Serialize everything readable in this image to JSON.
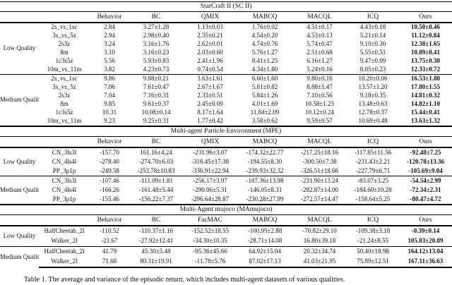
{
  "colors": {
    "background": "#ffffff",
    "text": "#111111",
    "rule": "#000000"
  },
  "caption": "Table 1. The average and variance of the episodic return, which includes multi-agent datasets of various qualities.",
  "tables": [
    {
      "title": "StarCraft II (SC II)",
      "headers": [
        "Behavior",
        "BC",
        "QMIX",
        "MABCQ",
        "MACQL",
        "ICQ",
        "Ours"
      ],
      "groups": [
        {
          "label": "Low Quality",
          "rows": [
            {
              "task": "2s_vs_1sc",
              "values": [
                "2.84",
                "3.27±1.28",
                "1.13±0.03",
                "1.76±0.02",
                "4.51±0.17",
                "4.43±0.18",
                "10.50±0.46"
              ]
            },
            {
              "task": "3s_vs_5z",
              "values": [
                "2.94",
                "2.98±0.40",
                "2.35±0.21",
                "4.54±0.20",
                "4.53±0.13",
                "5.21±0.14",
                "11.12±0.84"
              ]
            },
            {
              "task": "2s3z",
              "values": [
                "3.24",
                "3.16±1.76",
                "2.62±0.01",
                "4.74±0.76",
                "5.74±0.47",
                "9.10±0.30",
                "12.38±1.65"
              ]
            },
            {
              "task": "8m",
              "values": [
                "3.10",
                "3.16±0.23",
                "2.03±0.60",
                "5.76±1.27",
                "2.51±0.68",
                "5.55±0.51",
                "10.89±0.41"
              ]
            },
            {
              "task": "1c3s5z",
              "values": [
                "5.56",
                "5.93±0.83",
                "2.41±1.96",
                "8.41±1.25",
                "6.16±1.27",
                "9.47±0.09",
                "13.75±0.30"
              ]
            },
            {
              "task": "10m_vs_11m",
              "values": [
                "3.82",
                "4.23±0.73",
                "0.74±0.54",
                "4.34±1.80",
                "5.24±0.16",
                "8.05±0.23",
                "12.33±0.72"
              ]
            }
          ]
        },
        {
          "label": "Medium Quality",
          "rows": [
            {
              "task": "2s_vs_1sc",
              "values": [
                "9.86",
                "9.88±0.21",
                "3.63±1.61",
                "6.60±1.60",
                "9.80±0.16",
                "10.20±0.06",
                "16.53±1.80"
              ]
            },
            {
              "task": "3s_vs_5z",
              "values": [
                "7.06",
                "7.61±0.47",
                "2.67±1.67",
                "5.81±0.82",
                "8.88±1.47",
                "13.57±1.20",
                "17.80±1.55"
              ]
            },
            {
              "task": "2s3z",
              "values": [
                "7.04",
                "7.16±0.31",
                "2.33±0.51",
                "5.84±1.26",
                "7.10±0.56",
                "9.18±0.35",
                "14.81±0.32"
              ]
            },
            {
              "task": "8m",
              "values": [
                "9.85",
                "9.61±0.37",
                "2.45±0.09",
                "4.01±1.69",
                "10.58±1.23",
                "13.48±0.63",
                "14.82±1.10"
              ]
            },
            {
              "task": "1c3s5z",
              "values": [
                "10.31",
                "10.08±0.14",
                "8.17±1.64",
                "11.84±2.09",
                "10.12±0.24",
                "12.78±0.37",
                "15.44±0.41"
              ]
            },
            {
              "task": "10m_vs_11m",
              "values": [
                "9.23",
                "9.25±0.31",
                "1.77±0.42",
                "3.58±0.62",
                "9.59±0.57",
                "10.69±0.48",
                "13.63±1.32"
              ]
            }
          ]
        }
      ]
    },
    {
      "title": "Multi-agent Particle Environment (MPE)",
      "headers": [
        "Behavior",
        "BC",
        "QMIX",
        "MABCQ",
        "MACQL",
        "ICQ",
        "Ours"
      ],
      "groups": [
        {
          "label": "Low Quality",
          "rows": [
            {
              "task": "CN_3ls3l",
              "values": [
                "-157.70",
                "161.16±4.24",
                "-231.96±3.07",
                "-174.32±22.77",
                "-217.25±18.16",
                "-117.85±11.56",
                "-92.48±7.25"
              ]
            },
            {
              "task": "CN_4ls4l",
              "values": [
                "-278.40",
                "-274.70±6.03",
                "-316.45±17.38",
                "-194.55±8.30",
                "-300.50±7.38",
                "-231.43±2.21",
                "-120.78±13.36"
              ]
            },
            {
              "task": "PP_3p1p",
              "values": [
                "-249.58",
                "-253.78±10.83",
                "-336.91±22.94",
                "-239.93±32.32",
                "-326.51±18.66",
                "-227.79±6.71",
                "-105.69±9.04"
              ]
            }
          ]
        },
        {
          "label": "Medium Quality",
          "rows": [
            {
              "task": "CN_3ls3l",
              "values": [
                "-107.46",
                "-111.09±1.81",
                "-256.17±3.97",
                "-107.36±13.98",
                "-231.90±13.24",
                "-83.07±3.25",
                "-54.54±2.99"
              ]
            },
            {
              "task": "CN_4ls4l",
              "values": [
                "-166.26",
                "-161.48±5.44",
                "-290.06±5.31",
                "-146.05±8.31",
                "-282.87±14.00",
                "-184.60±10.28",
                "-72.34±2.31"
              ]
            },
            {
              "task": "PP_3p1p",
              "values": [
                "-155.46",
                "-156.22±7.37",
                "-296.64±28.87",
                "-230.28±27.99",
                "-272.57±14.47",
                "-158.64±5.25",
                "-80.47±4.72"
              ]
            }
          ]
        }
      ]
    },
    {
      "title": "Multi-Agent mujoco (MAmujoco)",
      "headers": [
        "Behavior",
        "BC",
        "FacMAC",
        "MABCQ",
        "MACQL",
        "ICQ",
        "Ours"
      ],
      "groups": [
        {
          "label": "Low Quality",
          "rows": [
            {
              "task": "HalfCheetah_2l",
              "values": [
                "-110.52",
                "-110.37±1.16",
                "-152.52±18.55",
                "-100.95±2.88",
                "-70.82±29.10",
                "-109.38±3.18",
                "-0.39±0.14"
              ]
            },
            {
              "task": "Walker_2l",
              "values": [
                "-21.67",
                "-27.92±12.41",
                "-34.30±10.35",
                "-28.71±14.08",
                "16.80±39.18",
                "-21.24±8.55",
                "105.83±20.89"
              ]
            }
          ]
        },
        {
          "label": "Medium Quality",
          "rows": [
            {
              "task": "HalfCheetah_2l",
              "values": [
                "41.79",
                "45.30±5.48",
                "-95.36±45.66",
                "64.92±15.04",
                "20.32±34.74",
                "50.40±18.98",
                "164.12±13.04"
              ]
            },
            {
              "task": "Walker_2l",
              "values": [
                "71.68",
                "80.31±19.91",
                "-11.78±5.76",
                "87.02±17.13",
                "41.03±21.95",
                "75.89±12.51",
                "167.11±36.63"
              ]
            }
          ]
        }
      ]
    }
  ]
}
